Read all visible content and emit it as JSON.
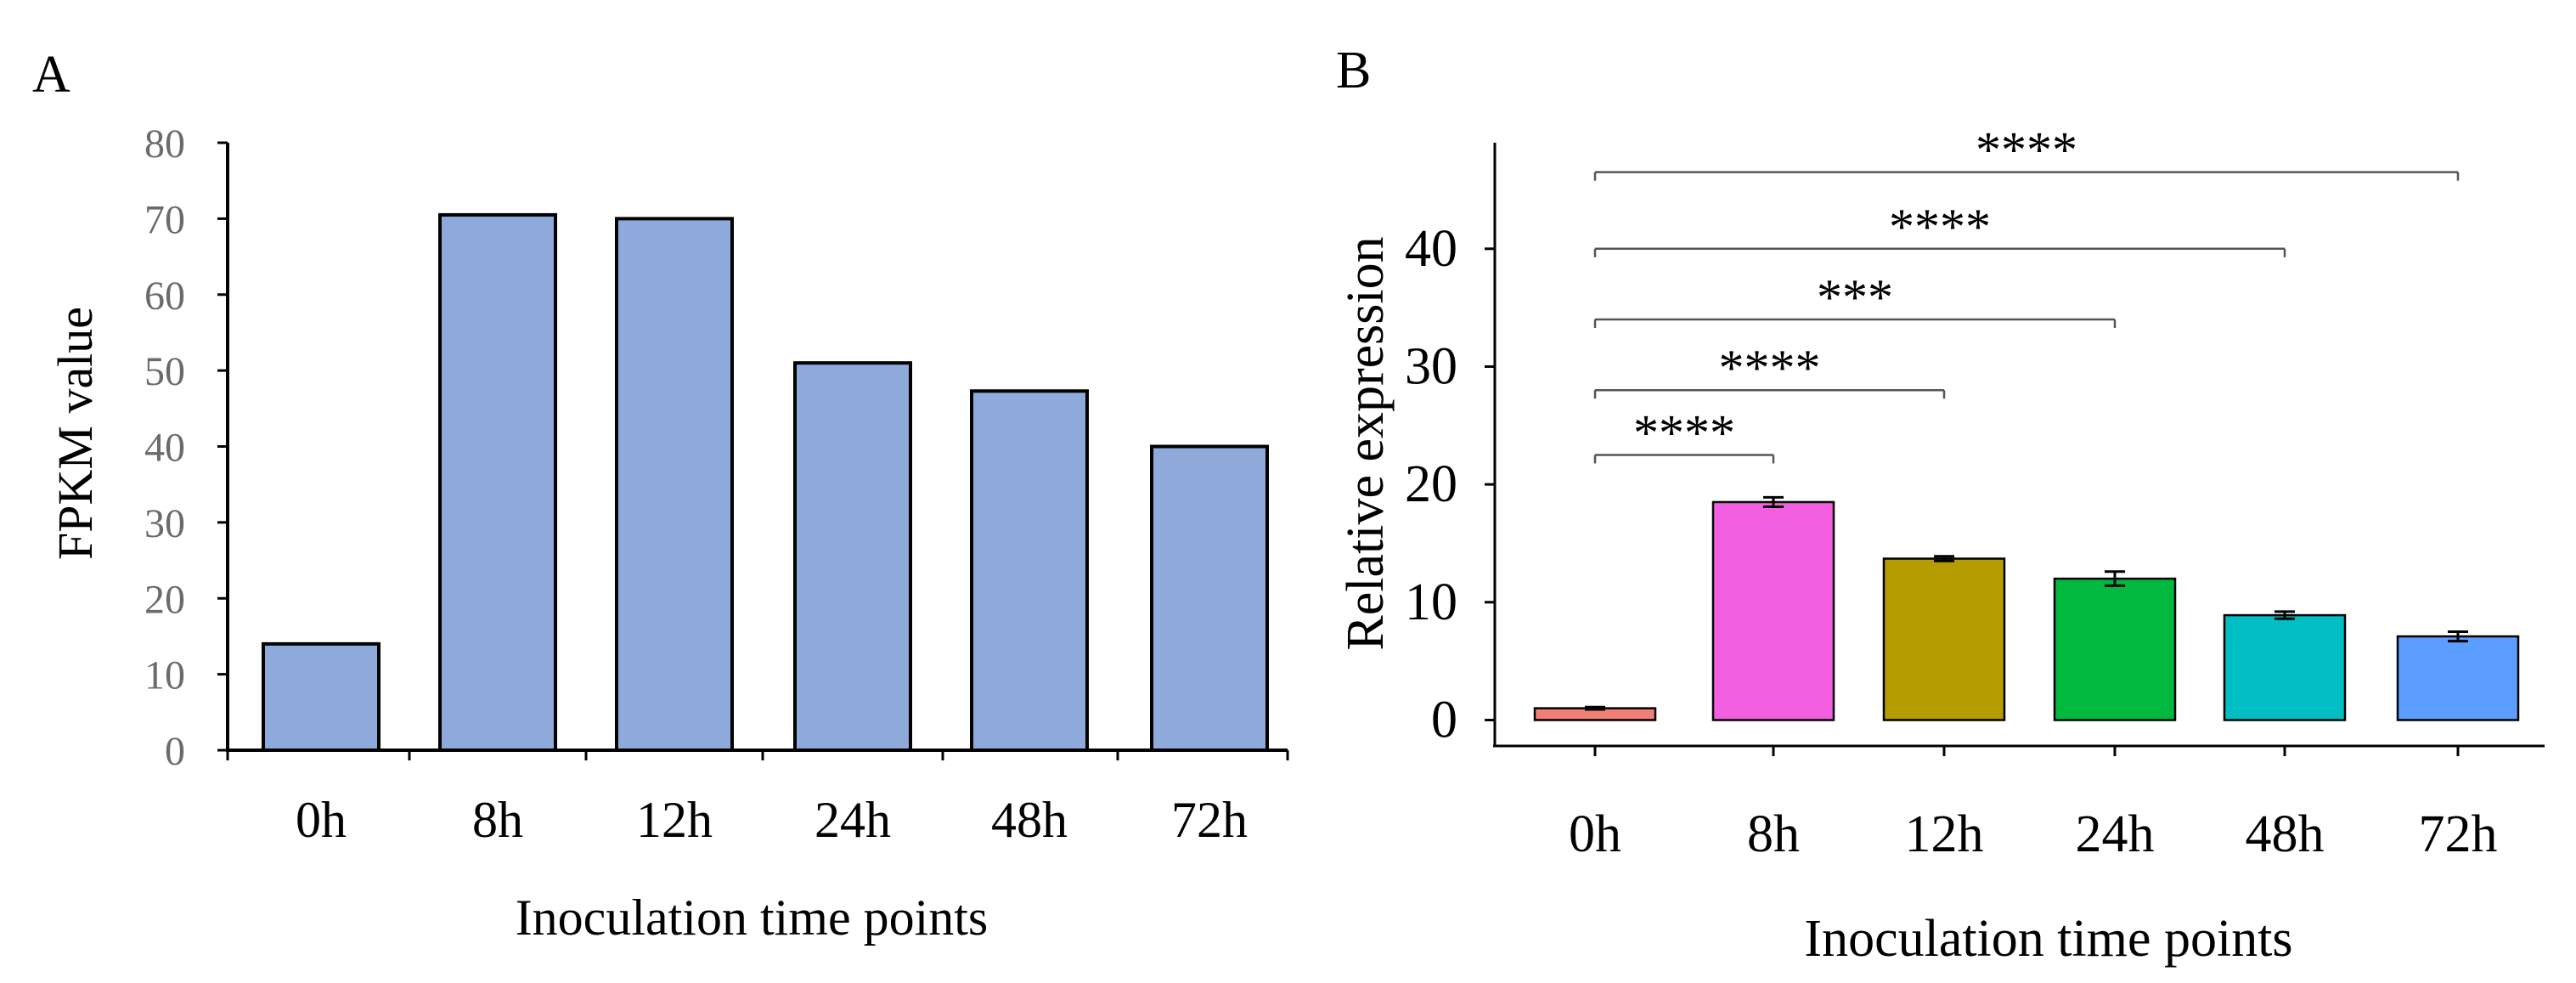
{
  "chart_data": [
    {
      "panel_label": "A",
      "type": "bar",
      "title": "",
      "xlabel": "Inoculation time points",
      "ylabel": "FPKM value",
      "ylim": [
        0,
        80
      ],
      "yticks": [
        0,
        10,
        20,
        30,
        40,
        50,
        60,
        70,
        80
      ],
      "grid": false,
      "categories": [
        "0h",
        "8h",
        "12h",
        "24h",
        "48h",
        "72h"
      ],
      "values": [
        14,
        70.5,
        70,
        51,
        47.3,
        40
      ],
      "bar_color": "#8eaadb"
    },
    {
      "panel_label": "B",
      "type": "bar",
      "title": "",
      "xlabel": "Inoculation time points",
      "ylabel": "Relative expression",
      "ylim": [
        -2.2,
        49
      ],
      "yticks": [
        0,
        10,
        20,
        30,
        40
      ],
      "grid": false,
      "categories": [
        "0h",
        "8h",
        "12h",
        "24h",
        "48h",
        "72h"
      ],
      "values": [
        1.0,
        18.5,
        13.7,
        12.0,
        8.9,
        7.1
      ],
      "errors": [
        0.1,
        0.4,
        0.2,
        0.6,
        0.3,
        0.4
      ],
      "colors": [
        "#f07f76",
        "#f35fe1",
        "#b59c00",
        "#00b93e",
        "#00bec4",
        "#5b9eff"
      ],
      "significance": [
        {
          "from": "0h",
          "to": "8h",
          "label": "****",
          "level": 22.5
        },
        {
          "from": "0h",
          "to": "12h",
          "label": "****",
          "level": 28.0
        },
        {
          "from": "0h",
          "to": "24h",
          "label": "***",
          "level": 34.0
        },
        {
          "from": "0h",
          "to": "48h",
          "label": "****",
          "level": 40.0
        },
        {
          "from": "0h",
          "to": "72h",
          "label": "****",
          "level": 46.5
        }
      ]
    }
  ]
}
